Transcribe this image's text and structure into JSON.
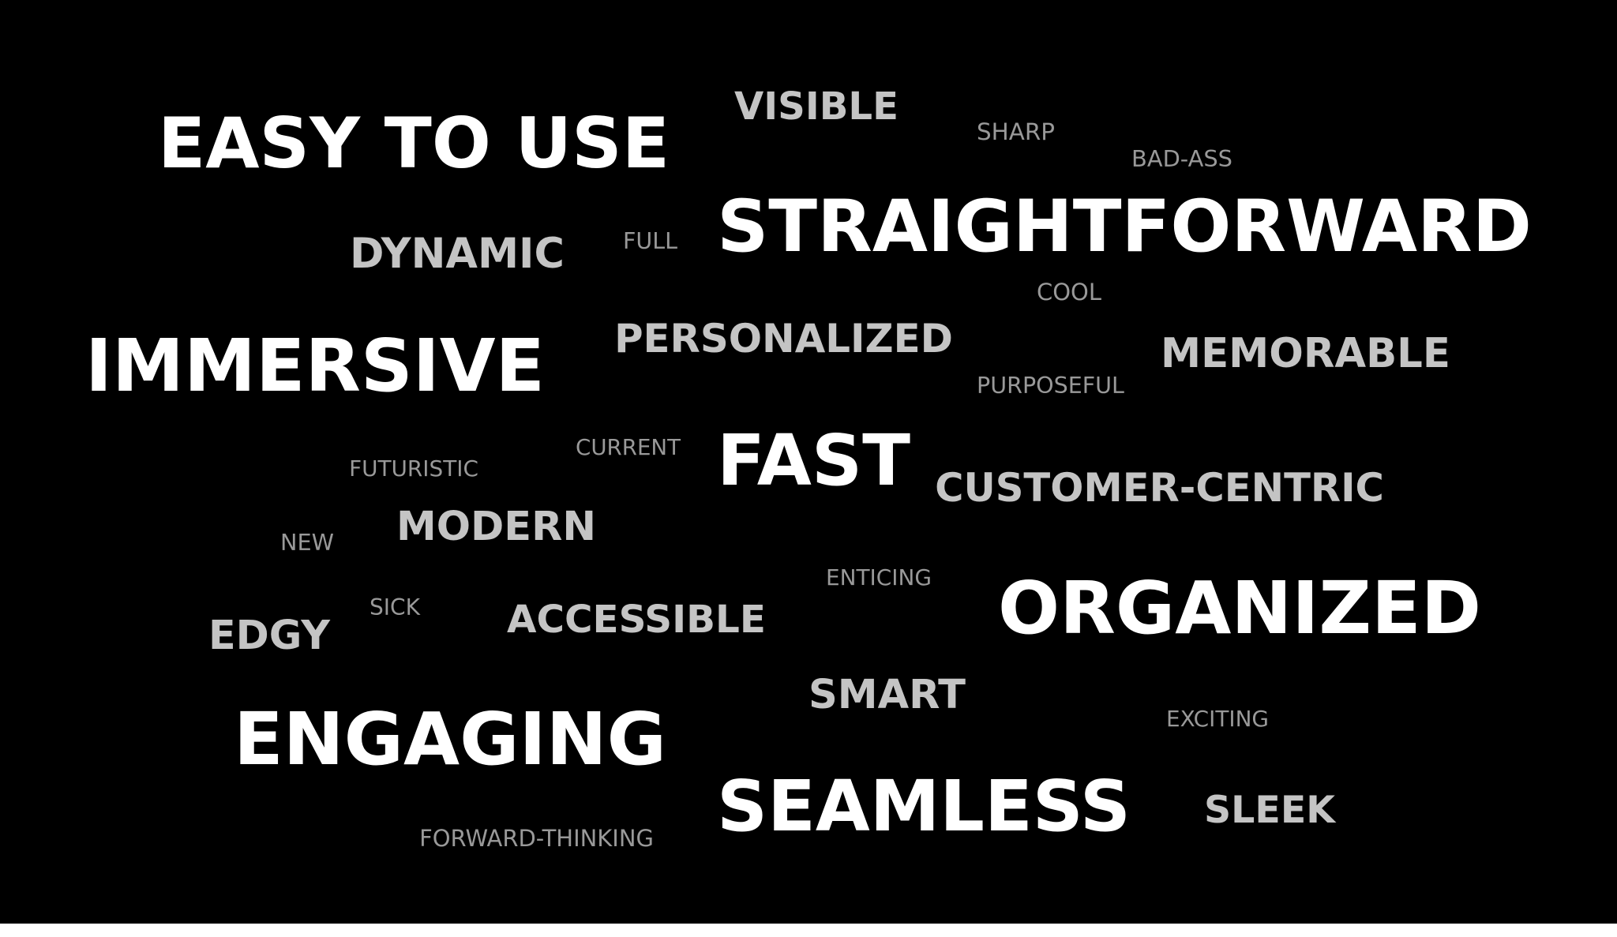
{
  "words": [
    {
      "text": "EASY TO USE",
      "tier": 1
    },
    {
      "text": "VISIBLE",
      "tier": 2
    },
    {
      "text": "SHARP",
      "tier": 3
    },
    {
      "text": "BAD-ASS",
      "tier": 3
    },
    {
      "text": "STRAIGHTFORWARD",
      "tier": 1
    },
    {
      "text": "DYNAMIC",
      "tier": 2
    },
    {
      "text": "FULL",
      "tier": 3
    },
    {
      "text": "COOL",
      "tier": 3
    },
    {
      "text": "IMMERSIVE",
      "tier": 1
    },
    {
      "text": "PERSONALIZED",
      "tier": 2
    },
    {
      "text": "MEMORABLE",
      "tier": 2
    },
    {
      "text": "PURPOSEFUL",
      "tier": 3
    },
    {
      "text": "CURRENT",
      "tier": 3
    },
    {
      "text": "FUTURISTIC",
      "tier": 3
    },
    {
      "text": "FAST",
      "tier": 1
    },
    {
      "text": "CUSTOMER-CENTRIC",
      "tier": 2
    },
    {
      "text": "NEW",
      "tier": 3
    },
    {
      "text": "MODERN",
      "tier": 2
    },
    {
      "text": "ENTICING",
      "tier": 3
    },
    {
      "text": "SICK",
      "tier": 3
    },
    {
      "text": "EDGY",
      "tier": 2
    },
    {
      "text": "ACCESSIBLE",
      "tier": 2
    },
    {
      "text": "ORGANIZED",
      "tier": 1
    },
    {
      "text": "SMART",
      "tier": 2
    },
    {
      "text": "EXCITING",
      "tier": 3
    },
    {
      "text": "ENGAGING",
      "tier": 1
    },
    {
      "text": "SEAMLESS",
      "tier": 1
    },
    {
      "text": "SLEEK",
      "tier": 2
    },
    {
      "text": "FORWARD-THINKING",
      "tier": 3
    }
  ],
  "colors": {
    "background": "#000000",
    "tier1": "#ffffff",
    "tier2": "#c4c4c4",
    "tier3": "#999999",
    "bottom_band": "#ffffff"
  }
}
